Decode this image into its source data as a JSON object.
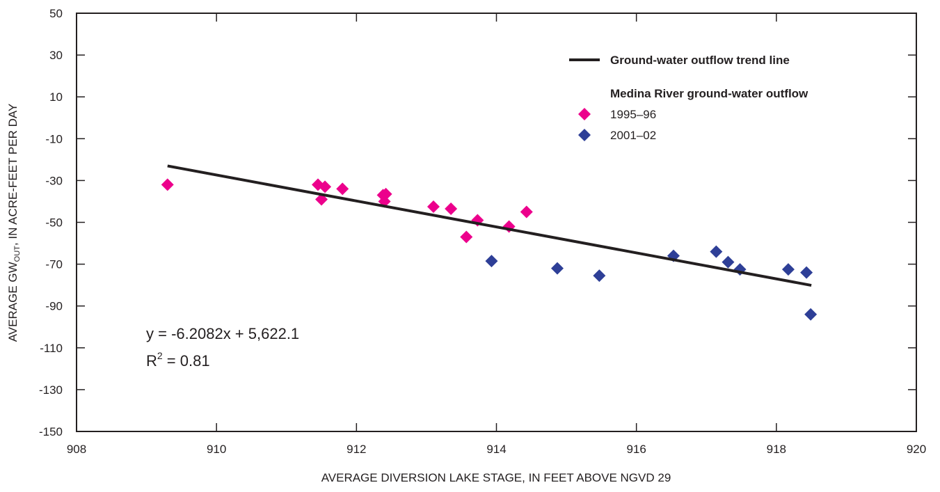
{
  "chart_data": {
    "type": "scatter",
    "xlabel": "AVERAGE DIVERSION LAKE STAGE, IN FEET ABOVE NGVD 29",
    "ylabel": {
      "prefix": "AVERAGE GW",
      "subscript": "OUT",
      "suffix": ", IN ACRE-FEET PER DAY"
    },
    "xlim": [
      908,
      920
    ],
    "ylim": [
      -150,
      50
    ],
    "xticks": [
      908,
      910,
      912,
      914,
      916,
      918,
      920
    ],
    "yticks": [
      50,
      30,
      10,
      -10,
      -30,
      -50,
      -70,
      -90,
      -110,
      -130,
      -150
    ],
    "grid": false,
    "legend": {
      "placement": "top-right",
      "trend_label": "Ground-water outflow trend line",
      "group_title": "Medina River ground-water outflow"
    },
    "trend_line": {
      "name": "Ground-water outflow trend line",
      "slope": -6.2082,
      "intercept": 5622.1,
      "x_range": [
        909.3,
        918.5
      ],
      "color": "#231f20"
    },
    "equation": {
      "line1": "y = -6.2082x + 5,622.1",
      "r2_prefix": "R",
      "r2_sup": "2",
      "r2_suffix": " = 0.81"
    },
    "series": [
      {
        "name": "1995–96",
        "color": "#ec008c",
        "points": [
          [
            909.3,
            -32
          ],
          [
            911.45,
            -32
          ],
          [
            911.5,
            -39
          ],
          [
            911.55,
            -33
          ],
          [
            911.8,
            -34
          ],
          [
            912.38,
            -37
          ],
          [
            912.4,
            -40
          ],
          [
            912.42,
            -36.5
          ],
          [
            913.1,
            -42.5
          ],
          [
            913.35,
            -43.5
          ],
          [
            913.57,
            -57
          ],
          [
            913.73,
            -49
          ],
          [
            914.18,
            -52
          ],
          [
            914.43,
            -45
          ]
        ]
      },
      {
        "name": "2001–02",
        "color": "#2e3f97",
        "points": [
          [
            913.93,
            -68.5
          ],
          [
            914.87,
            -72
          ],
          [
            915.47,
            -75.5
          ],
          [
            916.53,
            -66
          ],
          [
            917.14,
            -64
          ],
          [
            917.31,
            -69
          ],
          [
            917.48,
            -72.5
          ],
          [
            918.17,
            -72.5
          ],
          [
            918.43,
            -74
          ],
          [
            918.49,
            -94
          ]
        ]
      }
    ]
  }
}
